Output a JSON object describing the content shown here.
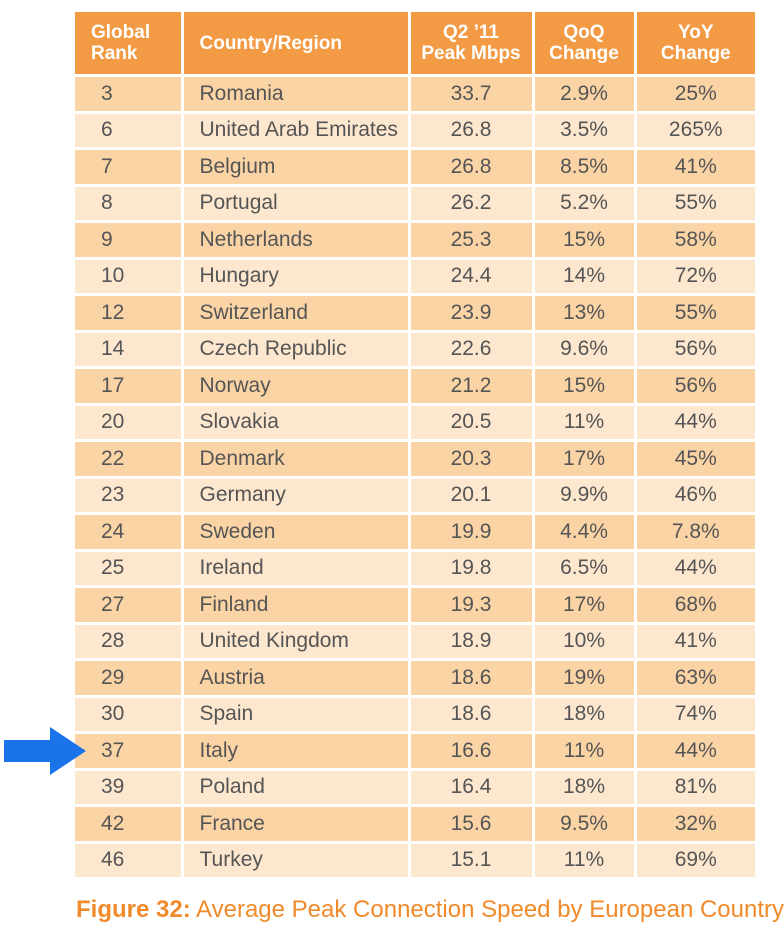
{
  "table": {
    "headers": {
      "rank": [
        "Global",
        "Rank"
      ],
      "country": [
        "Country/Region"
      ],
      "peak": [
        "Q2 ’11",
        "Peak Mbps"
      ],
      "qoq": [
        "QoQ",
        "Change"
      ],
      "yoy": [
        "YoY",
        "Change"
      ]
    },
    "rows": [
      [
        "3",
        "Romania",
        "33.7",
        "2.9%",
        "25%"
      ],
      [
        "6",
        "United Arab Emirates",
        "26.8",
        "3.5%",
        "265%"
      ],
      [
        "7",
        "Belgium",
        "26.8",
        "8.5%",
        "41%"
      ],
      [
        "8",
        "Portugal",
        "26.2",
        "5.2%",
        "55%"
      ],
      [
        "9",
        "Netherlands",
        "25.3",
        "15%",
        "58%"
      ],
      [
        "10",
        "Hungary",
        "24.4",
        "14%",
        "72%"
      ],
      [
        "12",
        "Switzerland",
        "23.9",
        "13%",
        "55%"
      ],
      [
        "14",
        "Czech Republic",
        "22.6",
        "9.6%",
        "56%"
      ],
      [
        "17",
        "Norway",
        "21.2",
        "15%",
        "56%"
      ],
      [
        "20",
        "Slovakia",
        "20.5",
        "11%",
        "44%"
      ],
      [
        "22",
        "Denmark",
        "20.3",
        "17%",
        "45%"
      ],
      [
        "23",
        "Germany",
        "20.1",
        "9.9%",
        "46%"
      ],
      [
        "24",
        "Sweden",
        "19.9",
        "4.4%",
        "7.8%"
      ],
      [
        "25",
        "Ireland",
        "19.8",
        "6.5%",
        "44%"
      ],
      [
        "27",
        "Finland",
        "19.3",
        "17%",
        "68%"
      ],
      [
        "28",
        "United Kingdom",
        "18.9",
        "10%",
        "41%"
      ],
      [
        "29",
        "Austria",
        "18.6",
        "19%",
        "63%"
      ],
      [
        "30",
        "Spain",
        "18.6",
        "18%",
        "74%"
      ],
      [
        "37",
        "Italy",
        "16.6",
        "11%",
        "44%"
      ],
      [
        "39",
        "Poland",
        "16.4",
        "18%",
        "81%"
      ],
      [
        "42",
        "France",
        "15.6",
        "9.5%",
        "32%"
      ],
      [
        "46",
        "Turkey",
        "15.1",
        "11%",
        "69%"
      ]
    ],
    "highlighted_row": 18
  },
  "caption": {
    "figure": "Figure 32",
    "separator": ":",
    "text": " Average Peak Connection Speed by European Country"
  },
  "colors": {
    "header_bg": "#f39a45",
    "row_odd": "#fbd4a6",
    "row_even": "#fde8cf",
    "arrow": "#1a73e8",
    "caption": "#f08a2a"
  },
  "chart_data": {
    "type": "table",
    "columns": [
      "Global Rank",
      "Country/Region",
      "Q2 ’11 Peak Mbps",
      "QoQ Change",
      "YoY Change"
    ],
    "rows": [
      [
        3,
        "Romania",
        33.7,
        "2.9%",
        "25%"
      ],
      [
        6,
        "United Arab Emirates",
        26.8,
        "3.5%",
        "265%"
      ],
      [
        7,
        "Belgium",
        26.8,
        "8.5%",
        "41%"
      ],
      [
        8,
        "Portugal",
        26.2,
        "5.2%",
        "55%"
      ],
      [
        9,
        "Netherlands",
        25.3,
        "15%",
        "58%"
      ],
      [
        10,
        "Hungary",
        24.4,
        "14%",
        "72%"
      ],
      [
        12,
        "Switzerland",
        23.9,
        "13%",
        "55%"
      ],
      [
        14,
        "Czech Republic",
        22.6,
        "9.6%",
        "56%"
      ],
      [
        17,
        "Norway",
        21.2,
        "15%",
        "56%"
      ],
      [
        20,
        "Slovakia",
        20.5,
        "11%",
        "44%"
      ],
      [
        22,
        "Denmark",
        20.3,
        "17%",
        "45%"
      ],
      [
        23,
        "Germany",
        20.1,
        "9.9%",
        "46%"
      ],
      [
        24,
        "Sweden",
        19.9,
        "4.4%",
        "7.8%"
      ],
      [
        25,
        "Ireland",
        19.8,
        "6.5%",
        "44%"
      ],
      [
        27,
        "Finland",
        19.3,
        "17%",
        "68%"
      ],
      [
        28,
        "United Kingdom",
        18.9,
        "10%",
        "41%"
      ],
      [
        29,
        "Austria",
        18.6,
        "19%",
        "63%"
      ],
      [
        30,
        "Spain",
        18.6,
        "18%",
        "74%"
      ],
      [
        37,
        "Italy",
        16.6,
        "11%",
        "44%"
      ],
      [
        39,
        "Poland",
        16.4,
        "18%",
        "81%"
      ],
      [
        42,
        "France",
        15.6,
        "9.5%",
        "32%"
      ],
      [
        46,
        "Turkey",
        15.1,
        "11%",
        "69%"
      ]
    ],
    "title": "Figure 32: Average Peak Connection Speed by European Country"
  }
}
